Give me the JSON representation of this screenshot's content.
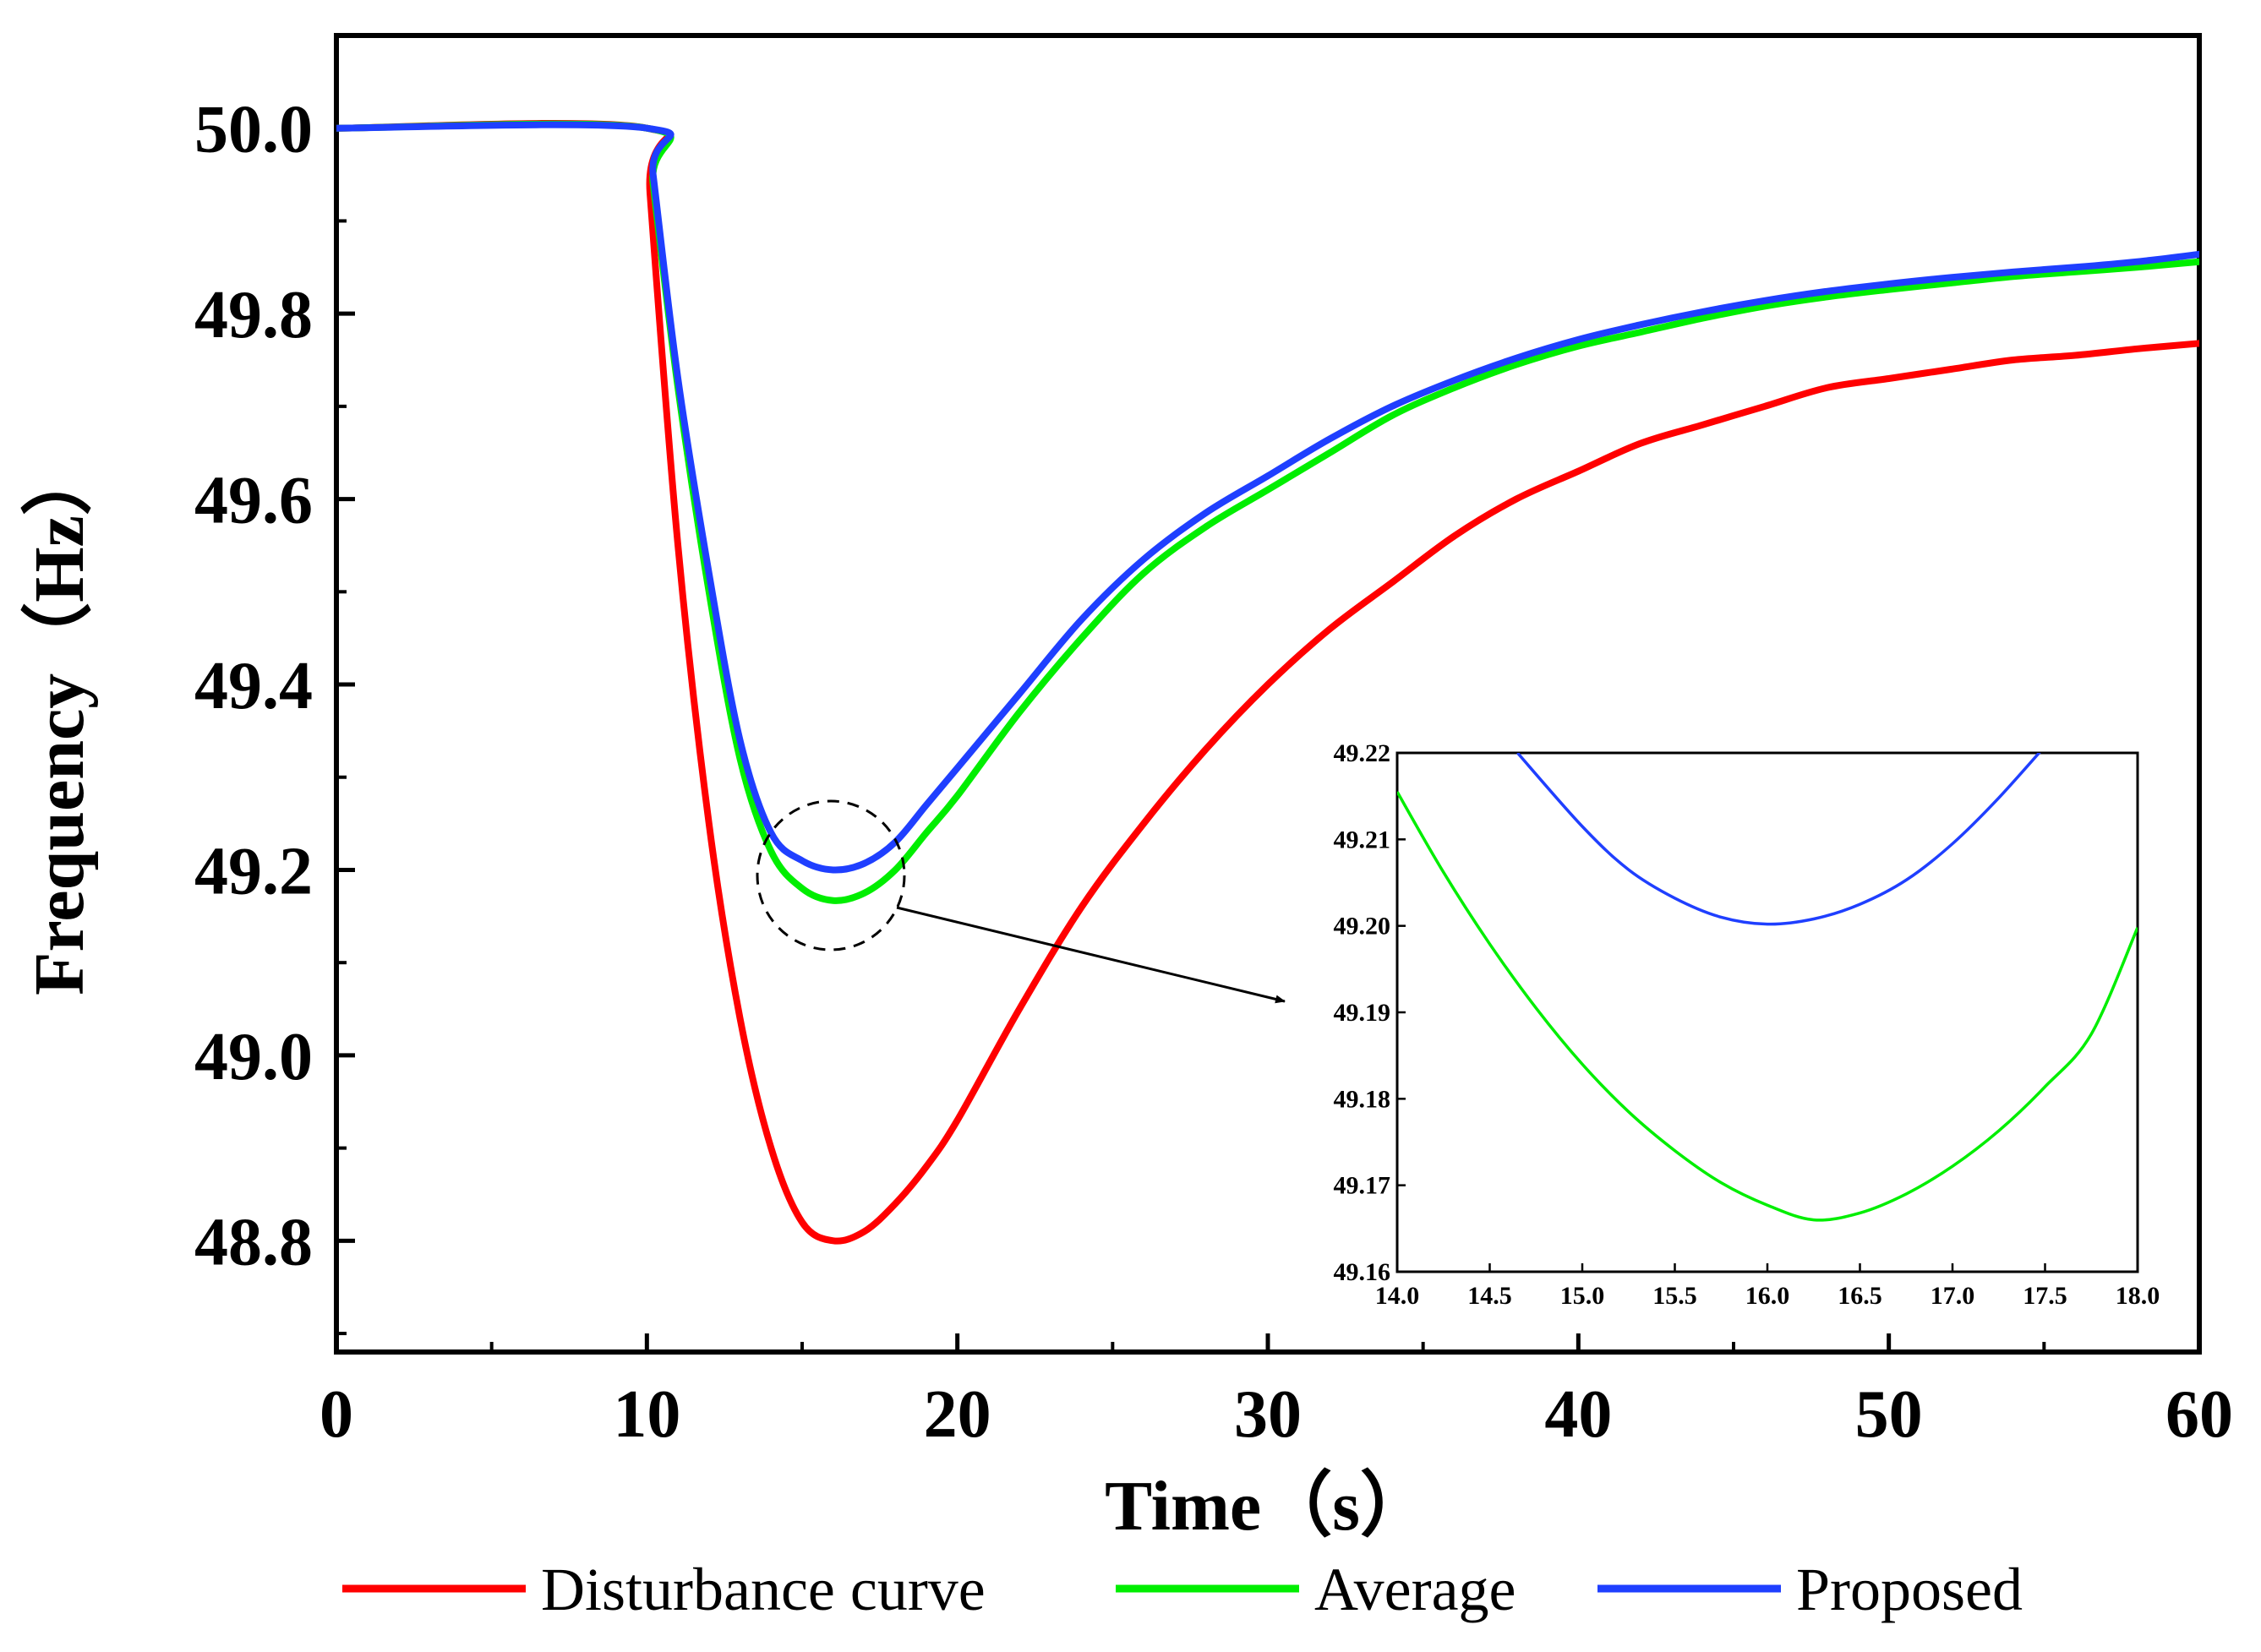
{
  "chart_data": {
    "type": "line",
    "title": "",
    "xlabel": "Time（s）",
    "ylabel": "Frequency（Hz）",
    "xlim": [
      0,
      60
    ],
    "ylim": [
      48.68,
      50.1
    ],
    "xticks": [
      "0",
      "10",
      "20",
      "30",
      "40",
      "50",
      "60"
    ],
    "yticks": [
      "48.8",
      "49.0",
      "49.2",
      "49.4",
      "49.6",
      "49.8",
      "50.0"
    ],
    "grid": false,
    "legend_position": "bottom",
    "series": [
      {
        "name": "Disturbance curve",
        "color": "#ff0000",
        "points": [
          [
            0,
            50.0
          ],
          [
            10.0,
            50.0
          ],
          [
            10.1,
            49.93
          ],
          [
            11,
            49.55
          ],
          [
            12,
            49.25
          ],
          [
            13,
            49.04
          ],
          [
            14,
            48.9
          ],
          [
            15,
            48.82
          ],
          [
            16,
            48.8
          ],
          [
            17,
            48.81
          ],
          [
            18,
            48.84
          ],
          [
            19,
            48.88
          ],
          [
            20,
            48.93
          ],
          [
            22,
            49.05
          ],
          [
            24,
            49.16
          ],
          [
            26,
            49.25
          ],
          [
            28,
            49.33
          ],
          [
            30,
            49.4
          ],
          [
            32,
            49.46
          ],
          [
            34,
            49.51
          ],
          [
            36,
            49.56
          ],
          [
            38,
            49.6
          ],
          [
            40,
            49.63
          ],
          [
            42,
            49.66
          ],
          [
            44,
            49.68
          ],
          [
            46,
            49.7
          ],
          [
            48,
            49.72
          ],
          [
            50,
            49.73
          ],
          [
            52,
            49.74
          ],
          [
            54,
            49.75
          ],
          [
            56,
            49.755
          ],
          [
            58,
            49.762
          ],
          [
            60,
            49.768
          ]
        ]
      },
      {
        "name": "Average",
        "color": "#00ee00",
        "points": [
          [
            0,
            50.0
          ],
          [
            10.0,
            50.0
          ],
          [
            10.2,
            49.94
          ],
          [
            11,
            49.72
          ],
          [
            12,
            49.5
          ],
          [
            13,
            49.32
          ],
          [
            14,
            49.22
          ],
          [
            15,
            49.18
          ],
          [
            16,
            49.167
          ],
          [
            17,
            49.175
          ],
          [
            18,
            49.2
          ],
          [
            19,
            49.24
          ],
          [
            20,
            49.28
          ],
          [
            22,
            49.37
          ],
          [
            24,
            49.45
          ],
          [
            26,
            49.52
          ],
          [
            28,
            49.57
          ],
          [
            30,
            49.61
          ],
          [
            32,
            49.65
          ],
          [
            34,
            49.69
          ],
          [
            36,
            49.72
          ],
          [
            38,
            49.745
          ],
          [
            40,
            49.765
          ],
          [
            42,
            49.78
          ],
          [
            44,
            49.795
          ],
          [
            46,
            49.808
          ],
          [
            48,
            49.818
          ],
          [
            50,
            49.826
          ],
          [
            52,
            49.833
          ],
          [
            54,
            49.84
          ],
          [
            56,
            49.845
          ],
          [
            58,
            49.85
          ],
          [
            60,
            49.856
          ]
        ]
      },
      {
        "name": "Proposed",
        "color": "#1f3fff",
        "points": [
          [
            0,
            50.0
          ],
          [
            10.0,
            50.0
          ],
          [
            10.2,
            49.95
          ],
          [
            11,
            49.73
          ],
          [
            12,
            49.52
          ],
          [
            13,
            49.34
          ],
          [
            14,
            49.24
          ],
          [
            15,
            49.21
          ],
          [
            16,
            49.2
          ],
          [
            17,
            49.207
          ],
          [
            18,
            49.23
          ],
          [
            19,
            49.27
          ],
          [
            20,
            49.31
          ],
          [
            22,
            49.39
          ],
          [
            24,
            49.47
          ],
          [
            26,
            49.535
          ],
          [
            28,
            49.585
          ],
          [
            30,
            49.625
          ],
          [
            32,
            49.665
          ],
          [
            34,
            49.7
          ],
          [
            36,
            49.728
          ],
          [
            38,
            49.752
          ],
          [
            40,
            49.772
          ],
          [
            42,
            49.788
          ],
          [
            44,
            49.802
          ],
          [
            46,
            49.814
          ],
          [
            48,
            49.824
          ],
          [
            50,
            49.832
          ],
          [
            52,
            49.839
          ],
          [
            54,
            49.845
          ],
          [
            56,
            49.85
          ],
          [
            58,
            49.856
          ],
          [
            60,
            49.864
          ]
        ]
      }
    ],
    "annotation": "Dashed circle around the minima near t = 16 s with an arrow pointing to the zoomed inset",
    "inset": {
      "xlim": [
        14.0,
        18.0
      ],
      "ylim": [
        49.16,
        49.22
      ],
      "xticks": [
        "14.0",
        "14.5",
        "15.0",
        "15.5",
        "16.0",
        "16.5",
        "17.0",
        "17.5",
        "18.0"
      ],
      "yticks": [
        "49.16",
        "49.17",
        "49.18",
        "49.19",
        "49.20",
        "49.21",
        "49.22"
      ],
      "series": [
        {
          "name": "Average",
          "color": "#00ee00",
          "points": [
            [
              14.0,
              49.2155
            ],
            [
              14.25,
              49.2062
            ],
            [
              14.5,
              49.1979
            ],
            [
              14.75,
              49.1905
            ],
            [
              15.0,
              49.184
            ],
            [
              15.25,
              49.1785
            ],
            [
              15.5,
              49.174
            ],
            [
              15.75,
              49.1703
            ],
            [
              16.0,
              49.1677
            ],
            [
              16.25,
              49.166
            ],
            [
              16.5,
              49.1668
            ],
            [
              16.75,
              49.169
            ],
            [
              17.0,
              49.1722
            ],
            [
              17.25,
              49.1763
            ],
            [
              17.5,
              49.1814
            ],
            [
              17.75,
              49.1875
            ],
            [
              18.0,
              49.1998
            ]
          ]
        },
        {
          "name": "Proposed",
          "color": "#1f3fff",
          "points": [
            [
              14.65,
              49.22
            ],
            [
              15.0,
              49.2115
            ],
            [
              15.25,
              49.2065
            ],
            [
              15.5,
              49.2032
            ],
            [
              15.75,
              49.201
            ],
            [
              16.0,
              49.2002
            ],
            [
              16.25,
              49.2008
            ],
            [
              16.5,
              49.2025
            ],
            [
              16.75,
              49.2053
            ],
            [
              17.0,
              49.2095
            ],
            [
              17.25,
              49.2148
            ],
            [
              17.55,
              49.222
            ]
          ]
        }
      ]
    }
  }
}
